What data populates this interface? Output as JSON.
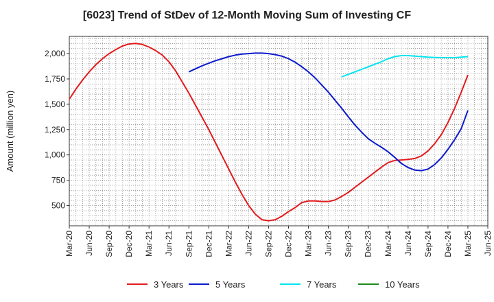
{
  "chart_data": {
    "type": "line",
    "title": "[6023]  Trend of StDev of 12-Month Moving Sum of Investing CF",
    "xlabel": "",
    "ylabel": "Amount (million yen)",
    "ylim": [
      300,
      2170
    ],
    "y_ticks": [
      500,
      750,
      1000,
      1250,
      1500,
      1750,
      2000
    ],
    "y_tick_labels": [
      "500",
      "750",
      "1,000",
      "1,250",
      "1,500",
      "1,750",
      "2,000"
    ],
    "x_tick_labels": [
      "Mar-20",
      "Jun-20",
      "Sep-20",
      "Dec-20",
      "Mar-21",
      "Jun-21",
      "Sep-21",
      "Dec-21",
      "Mar-22",
      "Jun-22",
      "Sep-22",
      "Dec-22",
      "Mar-23",
      "Jun-23",
      "Sep-23",
      "Dec-23",
      "Mar-24",
      "Jun-24",
      "Sep-24",
      "Dec-24",
      "Mar-25",
      "Jun-25"
    ],
    "grid": true,
    "legend_position": "bottom",
    "series": [
      {
        "name": "3 Years",
        "color": "#e31a1c",
        "x": [
          "Mar-20",
          "Apr-20",
          "May-20",
          "Jun-20",
          "Jul-20",
          "Aug-20",
          "Sep-20",
          "Oct-20",
          "Nov-20",
          "Dec-20",
          "Jan-21",
          "Feb-21",
          "Mar-21",
          "Apr-21",
          "May-21",
          "Jun-21",
          "Jul-21",
          "Aug-21",
          "Sep-21",
          "Oct-21",
          "Nov-21",
          "Dec-21",
          "Jan-22",
          "Feb-22",
          "Mar-22",
          "Apr-22",
          "May-22",
          "Jun-22",
          "Jul-22",
          "Aug-22",
          "Sep-22",
          "Oct-22",
          "Nov-22",
          "Dec-22",
          "Jan-23",
          "Feb-23",
          "Mar-23",
          "Apr-23",
          "May-23",
          "Jun-23",
          "Jul-23",
          "Aug-23",
          "Sep-23",
          "Oct-23",
          "Nov-23",
          "Dec-23",
          "Jan-24",
          "Feb-24",
          "Mar-24",
          "Apr-24",
          "May-24",
          "Jun-24",
          "Jul-24",
          "Aug-24",
          "Sep-24",
          "Oct-24",
          "Nov-24",
          "Dec-24",
          "Jan-25",
          "Feb-25",
          "Mar-25"
        ],
        "values": [
          1550,
          1650,
          1740,
          1820,
          1890,
          1950,
          2000,
          2040,
          2075,
          2095,
          2100,
          2090,
          2065,
          2030,
          1985,
          1920,
          1830,
          1720,
          1610,
          1490,
          1370,
          1250,
          1120,
          990,
          860,
          730,
          610,
          500,
          415,
          360,
          350,
          360,
          395,
          440,
          480,
          530,
          545,
          545,
          540,
          540,
          555,
          590,
          630,
          680,
          730,
          780,
          830,
          880,
          925,
          945,
          950,
          955,
          965,
          990,
          1040,
          1110,
          1200,
          1320,
          1460,
          1620,
          1790
        ]
      },
      {
        "name": "5 Years",
        "color": "#0a1acc",
        "x": [
          "Sep-21",
          "Oct-21",
          "Nov-21",
          "Dec-21",
          "Jan-22",
          "Feb-22",
          "Mar-22",
          "Apr-22",
          "May-22",
          "Jun-22",
          "Jul-22",
          "Aug-22",
          "Sep-22",
          "Oct-22",
          "Nov-22",
          "Dec-22",
          "Jan-23",
          "Feb-23",
          "Mar-23",
          "Apr-23",
          "May-23",
          "Jun-23",
          "Jul-23",
          "Aug-23",
          "Sep-23",
          "Oct-23",
          "Nov-23",
          "Dec-23",
          "Jan-24",
          "Feb-24",
          "Mar-24",
          "Apr-24",
          "May-24",
          "Jun-24",
          "Jul-24",
          "Aug-24",
          "Sep-24",
          "Oct-24",
          "Nov-24",
          "Dec-24",
          "Jan-25",
          "Feb-25",
          "Mar-25"
        ],
        "values": [
          1820,
          1850,
          1880,
          1905,
          1930,
          1950,
          1970,
          1985,
          1995,
          2000,
          2005,
          2005,
          2000,
          1990,
          1975,
          1950,
          1915,
          1870,
          1820,
          1760,
          1690,
          1620,
          1540,
          1460,
          1375,
          1295,
          1225,
          1160,
          1115,
          1075,
          1030,
          975,
          915,
          875,
          850,
          845,
          860,
          905,
          970,
          1055,
          1150,
          1260,
          1440
        ]
      },
      {
        "name": "7 Years",
        "color": "#00e5ee",
        "x": [
          "Aug-23",
          "Sep-23",
          "Oct-23",
          "Nov-23",
          "Dec-23",
          "Jan-24",
          "Feb-24",
          "Mar-24",
          "Apr-24",
          "May-24",
          "Jun-24",
          "Jul-24",
          "Aug-24",
          "Sep-24",
          "Oct-24",
          "Nov-24",
          "Dec-24",
          "Jan-25",
          "Feb-25",
          "Mar-25"
        ],
        "values": [
          1770,
          1795,
          1820,
          1845,
          1870,
          1895,
          1920,
          1950,
          1970,
          1980,
          1980,
          1975,
          1970,
          1965,
          1962,
          1960,
          1960,
          1960,
          1965,
          1970
        ]
      },
      {
        "name": "10 Years",
        "color": "#1a8a1a",
        "x": [],
        "values": []
      }
    ]
  }
}
